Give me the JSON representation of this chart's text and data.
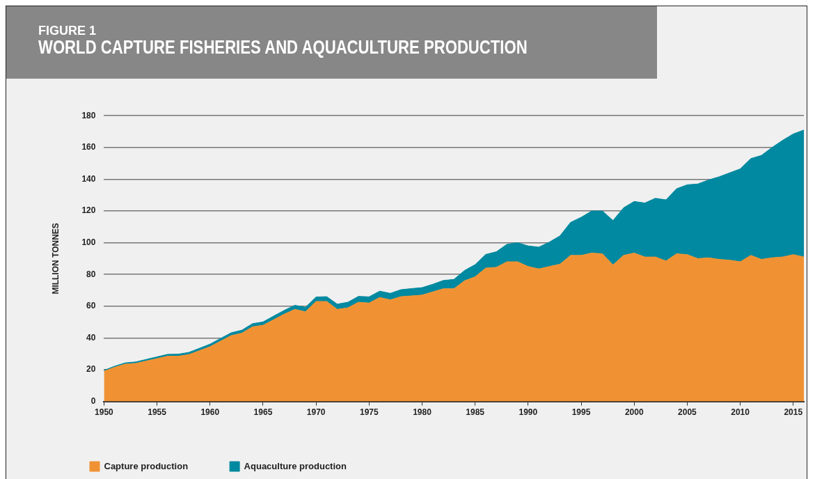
{
  "chart_data": {
    "type": "area",
    "title": "WORLD CAPTURE FISHERIES AND AQUACULTURE PRODUCTION",
    "subtitle": "FIGURE 1",
    "ylabel": "MILLION TONNES",
    "x": [
      1950,
      1951,
      1952,
      1953,
      1954,
      1955,
      1956,
      1957,
      1958,
      1959,
      1960,
      1961,
      1962,
      1963,
      1964,
      1965,
      1966,
      1967,
      1968,
      1969,
      1970,
      1971,
      1972,
      1973,
      1974,
      1975,
      1976,
      1977,
      1978,
      1979,
      1980,
      1981,
      1982,
      1983,
      1984,
      1985,
      1986,
      1987,
      1988,
      1989,
      1990,
      1991,
      1992,
      1993,
      1994,
      1995,
      1996,
      1997,
      1998,
      1999,
      2000,
      2001,
      2002,
      2003,
      2004,
      2005,
      2006,
      2007,
      2008,
      2009,
      2010,
      2011,
      2012,
      2013,
      2014,
      2015,
      2016
    ],
    "series": [
      {
        "name": "Capture production",
        "color": "#f09233",
        "values": [
          19,
          21.5,
          23.5,
          24,
          25.5,
          27,
          28.5,
          28.5,
          29.5,
          32,
          34.5,
          38,
          41.5,
          43,
          47,
          48,
          51.5,
          55,
          58,
          56.5,
          63,
          63,
          58,
          59,
          62.5,
          62,
          65.5,
          64,
          66,
          66.5,
          67,
          69,
          71,
          71,
          76,
          78.5,
          84,
          84.5,
          88,
          88,
          85,
          83.5,
          85,
          86.5,
          92,
          92,
          93.5,
          93,
          86,
          92,
          93.5,
          91,
          91,
          88.5,
          93,
          92.5,
          90,
          90.5,
          89.5,
          89,
          88,
          92,
          89.5,
          90.5,
          91,
          92.5,
          91
        ]
      },
      {
        "name": "Aquaculture production",
        "color": "#0089a0",
        "values": [
          0.6,
          0.7,
          0.8,
          0.9,
          1,
          1.1,
          1.2,
          1.3,
          1.4,
          1.5,
          1.6,
          1.7,
          1.8,
          1.9,
          2,
          2.1,
          2.3,
          2.4,
          2.6,
          2.8,
          2.8,
          3,
          3.3,
          3.5,
          3.7,
          3.9,
          4,
          4.1,
          4.4,
          4.6,
          4.7,
          4.8,
          5.2,
          5.9,
          6.5,
          7.7,
          8.6,
          9.8,
          11,
          12,
          13,
          13.7,
          15.4,
          17.8,
          20.8,
          24,
          26.5,
          27,
          28,
          30,
          32.5,
          34,
          37,
          38.5,
          41,
          44,
          47,
          49,
          52,
          55,
          58.5,
          61,
          65.5,
          69.5,
          73.5,
          76,
          80
        ]
      }
    ],
    "stacked": true,
    "xlim": [
      1950,
      2016
    ],
    "xticks": [
      1950,
      1955,
      1960,
      1965,
      1970,
      1975,
      1980,
      1985,
      1990,
      1995,
      2000,
      2005,
      2010,
      2015
    ],
    "ylim": [
      0,
      180
    ],
    "yticks": [
      0,
      20,
      40,
      60,
      80,
      100,
      120,
      140,
      160,
      180
    ],
    "grid": "y",
    "legend": "bottom left"
  }
}
